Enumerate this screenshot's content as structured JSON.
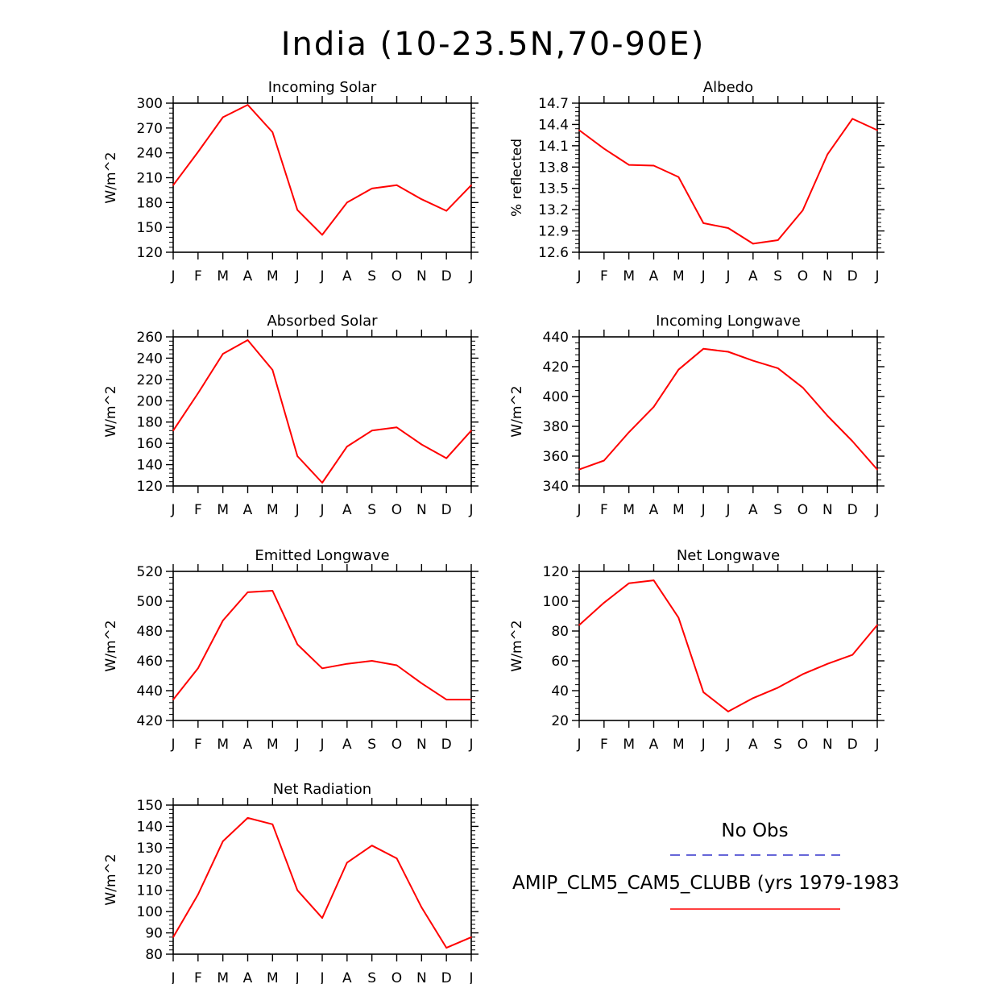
{
  "title": "India (10-23.5N,70-90E)",
  "months": [
    "J",
    "F",
    "M",
    "A",
    "M",
    "J",
    "J",
    "A",
    "S",
    "O",
    "N",
    "D",
    "J"
  ],
  "legend": {
    "obs_label": "No Obs",
    "obs_color": "#3333cc",
    "model_label": "AMIP_CLM5_CAM5_CLUBB (yrs 1979-1983",
    "model_color": "#ff0000"
  },
  "chart_data": [
    {
      "type": "line",
      "title": "Incoming Solar",
      "ylabel": "W/m^2",
      "ylim": [
        120,
        300
      ],
      "yticks": [
        "300",
        "270",
        "240",
        "210",
        "180",
        "150",
        "120"
      ],
      "series": [
        {
          "values": [
            201,
            241,
            283,
            298,
            265,
            171,
            141,
            180,
            197,
            201,
            184,
            170,
            201
          ]
        }
      ]
    },
    {
      "type": "line",
      "title": "Albedo",
      "ylabel": "% reflected",
      "ylim": [
        12.6,
        14.7
      ],
      "yticks": [
        "14.7",
        "14.4",
        "14.1",
        "13.8",
        "13.5",
        "13.2",
        "12.9",
        "12.6"
      ],
      "series": [
        {
          "values": [
            14.32,
            14.06,
            13.83,
            13.82,
            13.66,
            13.01,
            12.94,
            12.72,
            12.77,
            13.19,
            13.98,
            14.48,
            14.32
          ]
        }
      ]
    },
    {
      "type": "line",
      "title": "Absorbed Solar",
      "ylabel": "W/m^2",
      "ylim": [
        120,
        260
      ],
      "yticks": [
        "260",
        "240",
        "220",
        "200",
        "180",
        "160",
        "140",
        "120"
      ],
      "series": [
        {
          "values": [
            172,
            207,
            244,
            257,
            229,
            148,
            123,
            157,
            172,
            175,
            159,
            146,
            172
          ]
        }
      ]
    },
    {
      "type": "line",
      "title": "Incoming Longwave",
      "ylabel": "W/m^2",
      "ylim": [
        340,
        440
      ],
      "yticks": [
        "440",
        "420",
        "400",
        "380",
        "360",
        "340"
      ],
      "series": [
        {
          "values": [
            351,
            357,
            376,
            393,
            418,
            432,
            430,
            424,
            419,
            406,
            387,
            370,
            351
          ]
        }
      ]
    },
    {
      "type": "line",
      "title": "Emitted Longwave",
      "ylabel": "W/m^2",
      "ylim": [
        420,
        520
      ],
      "yticks": [
        "520",
        "500",
        "480",
        "460",
        "440",
        "420"
      ],
      "series": [
        {
          "values": [
            434,
            455,
            487,
            506,
            507,
            471,
            455,
            458,
            460,
            457,
            445,
            434,
            434
          ]
        }
      ]
    },
    {
      "type": "line",
      "title": "Net Longwave",
      "ylabel": "W/m^2",
      "ylim": [
        20,
        120
      ],
      "yticks": [
        "120",
        "100",
        "80",
        "60",
        "40",
        "20"
      ],
      "series": [
        {
          "values": [
            84,
            99,
            112,
            114,
            89,
            39,
            26,
            35,
            42,
            51,
            58,
            64,
            84
          ]
        }
      ]
    },
    {
      "type": "line",
      "title": "Net Radiation",
      "ylabel": "W/m^2",
      "ylim": [
        80,
        150
      ],
      "yticks": [
        "150",
        "140",
        "130",
        "120",
        "110",
        "100",
        "90",
        "80"
      ],
      "series": [
        {
          "values": [
            88,
            108,
            133,
            144,
            141,
            110,
            97,
            123,
            131,
            125,
            102,
            83,
            88
          ]
        }
      ]
    }
  ]
}
